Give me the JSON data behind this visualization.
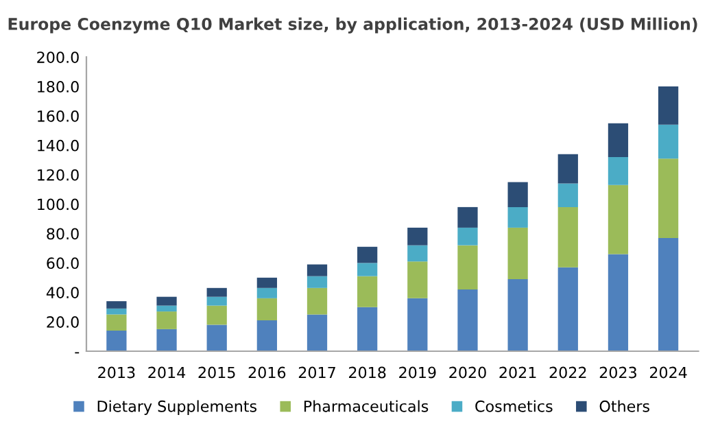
{
  "chart_data": {
    "type": "bar",
    "stacked": true,
    "title": "Europe Coenzyme Q10 Market size, by application, 2013-2024 (USD Million)",
    "categories": [
      "2013",
      "2014",
      "2015",
      "2016",
      "2017",
      "2018",
      "2019",
      "2020",
      "2021",
      "2022",
      "2023",
      "2024"
    ],
    "series": [
      {
        "name": "Dietary Supplements",
        "color": "#4f81bd",
        "values": [
          14,
          15,
          18,
          21,
          25,
          30,
          36,
          42,
          49,
          57,
          66,
          77
        ]
      },
      {
        "name": "Pharmaceuticals",
        "color": "#9bbb59",
        "values": [
          11,
          12,
          13,
          15,
          18,
          21,
          25,
          30,
          35,
          41,
          47,
          54
        ]
      },
      {
        "name": "Cosmetics",
        "color": "#4bacc6",
        "values": [
          4,
          4,
          6,
          7,
          8,
          9,
          11,
          12,
          14,
          16,
          19,
          23
        ]
      },
      {
        "name": "Others",
        "color": "#2c4d75",
        "values": [
          5,
          6,
          6,
          7,
          8,
          11,
          12,
          14,
          17,
          20,
          23,
          26
        ]
      }
    ],
    "ylim": [
      0,
      200
    ],
    "yticks": [
      {
        "value": 0,
        "label": "-"
      },
      {
        "value": 20,
        "label": "20.0"
      },
      {
        "value": 40,
        "label": "40.0"
      },
      {
        "value": 60,
        "label": "60.0"
      },
      {
        "value": 80,
        "label": "80.0"
      },
      {
        "value": 100,
        "label": "100.0"
      },
      {
        "value": 120,
        "label": "120.0"
      },
      {
        "value": 140,
        "label": "140.0"
      },
      {
        "value": 160,
        "label": "160.0"
      },
      {
        "value": 180,
        "label": "180.0"
      },
      {
        "value": 200,
        "label": "200.0"
      }
    ],
    "grid": false,
    "legend": "bottom"
  }
}
